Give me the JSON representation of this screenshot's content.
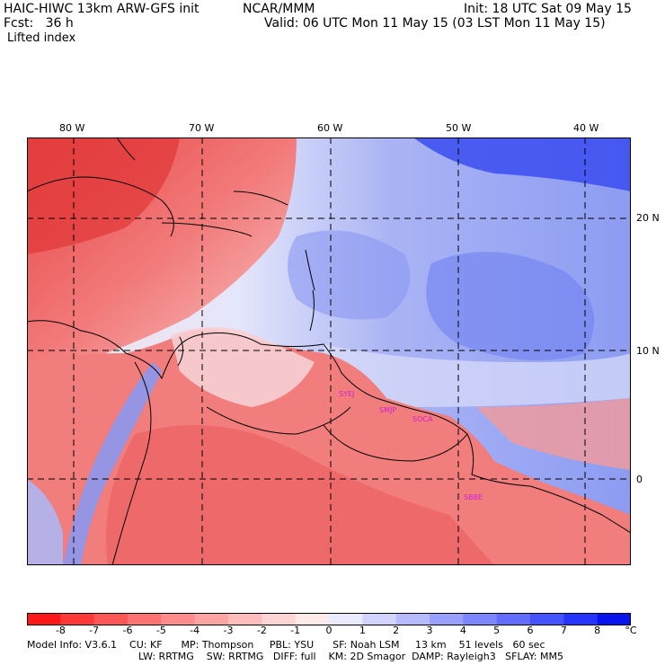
{
  "header": {
    "title_left": "HAIC-HIWC 13km ARW-GFS init",
    "org": "NCAR/MMM",
    "init": "Init: 18 UTC Sat 09 May 15",
    "fcst": "Fcst:   36 h",
    "valid": "Valid: 06 UTC Mon 11 May 15 (03 LST Mon 11 May 15)",
    "field": "Lifted index"
  },
  "map": {
    "lon_labels": [
      "80 W",
      "70 W",
      "60 W",
      "50 W",
      "40 W"
    ],
    "lat_labels": [
      "20 N",
      "10 N",
      "0"
    ],
    "station_labels": [
      "SYEJ",
      "SMJP",
      "SOCA",
      "SBBE"
    ],
    "colors": {
      "land_unstable": "#f27878",
      "ocean_stable": "#8c9cf2",
      "neutral": "#fbeeee",
      "coast": "#000000",
      "station_text": "#d020d0"
    }
  },
  "colorbar": {
    "labels": [
      "-8",
      "-7",
      "-6",
      "-5",
      "-4",
      "-3",
      "-2",
      "-1",
      "0",
      "1",
      "2",
      "3",
      "4",
      "5",
      "6",
      "7",
      "8"
    ],
    "unit": "°C",
    "colors": [
      "#ff1818",
      "#ff3838",
      "#ff5656",
      "#ff7272",
      "#ff8c8c",
      "#ffa4a4",
      "#ffbcbc",
      "#ffd4d4",
      "#ffeaea",
      "#eaeaff",
      "#d2d4ff",
      "#b6baff",
      "#9aa0ff",
      "#7e86ff",
      "#626cff",
      "#4452ff",
      "#2634ff",
      "#0814ee"
    ]
  },
  "footer": {
    "line1": "Model Info: V3.6.1    CU: KF      MP: Thompson     PBL: YSU      SF: Noah LSM     13 km    51 levels   60 sec",
    "line2": "LW: RRTMG    SW: RRTMG   DIFF: full    KM: 2D Smagor  DAMP: Rayleigh3   SFLAY: MM5"
  }
}
